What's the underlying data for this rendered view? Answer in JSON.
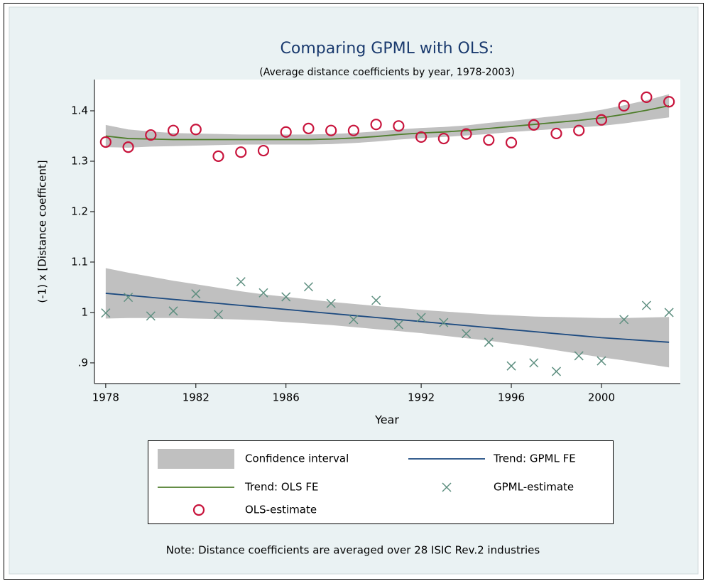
{
  "chart_data": {
    "type": "combo",
    "title": "Comparing GPML with OLS:",
    "subtitle": "(Average distance coefficients by year, 1978-2003)",
    "x_label": "Year",
    "y_label": "(-1) x [Distance coefficent]",
    "note": "Note: Distance coefficients are averaged over 28 ISIC Rev.2 industries",
    "x": [
      1978,
      1979,
      1980,
      1981,
      1982,
      1983,
      1984,
      1985,
      1986,
      1987,
      1988,
      1989,
      1990,
      1991,
      1992,
      1993,
      1994,
      1995,
      1996,
      1997,
      1998,
      1999,
      2000,
      2001,
      2002,
      2003
    ],
    "xlim": [
      1977.5,
      2003.5
    ],
    "xticks": [
      1978,
      1982,
      1986,
      1992,
      1996,
      2000
    ],
    "ylim": [
      0.859,
      1.462
    ],
    "yticks": [
      {
        "value": 0.9,
        "label": ".9"
      },
      1,
      1.1,
      1.2,
      1.3,
      1.4
    ],
    "series": [
      {
        "name": "Confidence interval",
        "kind": "band",
        "color": "#c0c0c0",
        "bands": [
          {
            "lower": [
              0.988,
              0.989,
              0.989,
              0.989,
              0.988,
              0.987,
              0.986,
              0.984,
              0.981,
              0.978,
              0.975,
              0.971,
              0.967,
              0.963,
              0.959,
              0.954,
              0.949,
              0.944,
              0.938,
              0.932,
              0.925,
              0.918,
              0.911,
              0.905,
              0.898,
              0.891
            ],
            "upper": [
              1.088,
              1.079,
              1.071,
              1.063,
              1.056,
              1.049,
              1.042,
              1.036,
              1.031,
              1.026,
              1.021,
              1.017,
              1.013,
              1.009,
              1.005,
              1.002,
              0.999,
              0.996,
              0.994,
              0.992,
              0.991,
              0.99,
              0.989,
              0.989,
              0.99,
              0.991
            ]
          },
          {
            "lower": [
              1.328,
              1.327,
              1.329,
              1.33,
              1.331,
              1.332,
              1.333,
              1.333,
              1.333,
              1.333,
              1.334,
              1.336,
              1.339,
              1.343,
              1.346,
              1.348,
              1.351,
              1.354,
              1.358,
              1.361,
              1.364,
              1.367,
              1.37,
              1.375,
              1.381,
              1.387
            ],
            "upper": [
              1.372,
              1.363,
              1.359,
              1.356,
              1.355,
              1.354,
              1.353,
              1.353,
              1.353,
              1.353,
              1.354,
              1.356,
              1.359,
              1.363,
              1.366,
              1.368,
              1.371,
              1.376,
              1.38,
              1.385,
              1.39,
              1.395,
              1.402,
              1.411,
              1.421,
              1.433
            ]
          }
        ]
      },
      {
        "name": "Trend: GPML FE",
        "kind": "line",
        "color": "#1c4a80",
        "values": [
          1.038,
          1.034,
          1.03,
          1.026,
          1.022,
          1.018,
          1.014,
          1.01,
          1.006,
          1.002,
          0.998,
          0.994,
          0.99,
          0.986,
          0.982,
          0.978,
          0.974,
          0.97,
          0.966,
          0.962,
          0.958,
          0.954,
          0.95,
          0.947,
          0.944,
          0.941
        ]
      },
      {
        "name": "Trend: OLS FE",
        "kind": "line",
        "color": "#4e7d2b",
        "values": [
          1.35,
          1.345,
          1.344,
          1.343,
          1.343,
          1.343,
          1.343,
          1.343,
          1.343,
          1.343,
          1.344,
          1.346,
          1.349,
          1.353,
          1.356,
          1.358,
          1.361,
          1.365,
          1.369,
          1.373,
          1.377,
          1.381,
          1.386,
          1.393,
          1.401,
          1.41
        ]
      },
      {
        "name": "GPML-estimate",
        "kind": "cross",
        "color": "#5e8f80",
        "values": [
          0.999,
          1.03,
          0.993,
          1.003,
          1.037,
          0.996,
          1.061,
          1.039,
          1.031,
          1.051,
          1.018,
          0.986,
          1.024,
          0.976,
          0.99,
          0.98,
          0.958,
          0.941,
          0.894,
          0.9,
          0.883,
          0.914,
          0.904,
          0.986,
          1.014,
          1.0
        ]
      },
      {
        "name": "OLS-estimate",
        "kind": "circle",
        "color": "#c8143c",
        "values": [
          1.338,
          1.328,
          1.352,
          1.361,
          1.363,
          1.31,
          1.318,
          1.321,
          1.358,
          1.365,
          1.361,
          1.361,
          1.373,
          1.37,
          1.348,
          1.345,
          1.354,
          1.342,
          1.337,
          1.372,
          1.355,
          1.361,
          1.382,
          1.41,
          1.427,
          1.418
        ]
      }
    ]
  }
}
